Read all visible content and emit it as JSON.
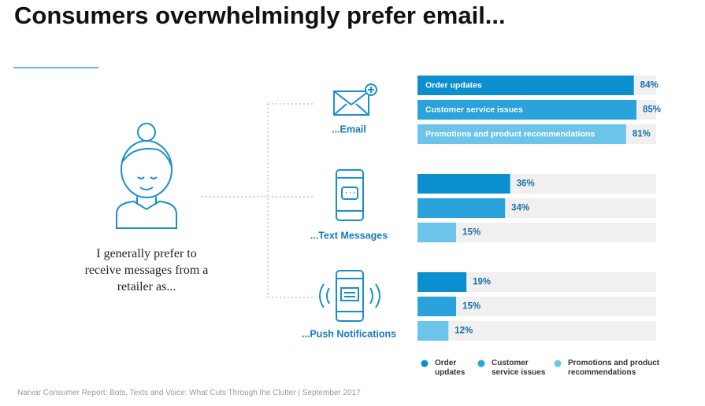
{
  "chart_data": {
    "type": "bar",
    "title": "Consumers overwhelmingly prefer email...",
    "prompt": "I generally prefer to receive messages from a retailer as...",
    "categories": [
      "...Email",
      "...Text Messages",
      "...Push Notifications"
    ],
    "series": [
      {
        "name": "Order updates",
        "color": "#0b8fce",
        "values": [
          84,
          36,
          19
        ],
        "value_labels": [
          "84%",
          "36%",
          "19%"
        ]
      },
      {
        "name": "Customer service issues",
        "color": "#2aa3dc",
        "values": [
          85,
          34,
          15
        ],
        "value_labels": [
          "85%",
          "34%",
          "15%"
        ]
      },
      {
        "name": "Promotions and product recommendations",
        "color": "#6cc4ea",
        "values": [
          81,
          15,
          12
        ],
        "value_labels": [
          "81%",
          "15%",
          "12%"
        ]
      }
    ],
    "xlim": [
      0,
      100
    ],
    "source": "Narvar Consumer Report: Bots, Texts and Voice: What Cuts Through the Clutter | September 2017"
  }
}
